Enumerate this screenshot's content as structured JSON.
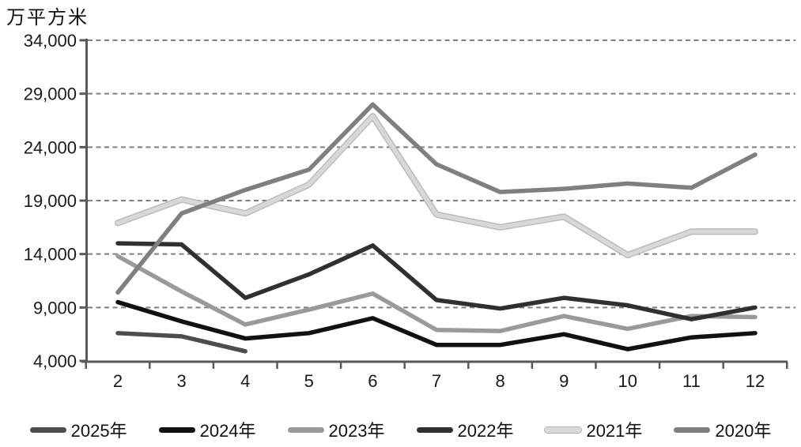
{
  "chart_data": {
    "type": "line",
    "title": "万平方米",
    "xlabel": "",
    "ylabel": "万平方米",
    "x": [
      2,
      3,
      4,
      5,
      6,
      7,
      8,
      9,
      10,
      11,
      12
    ],
    "ylim": [
      4000,
      34000
    ],
    "ytick_interval": 5000,
    "ytick_labels_top_down": [
      "34,000",
      "29,000",
      "24,000",
      "19,000",
      "14,000",
      "9,000",
      "4,000"
    ],
    "grid": "horizontal-dashed",
    "legend_position": "bottom",
    "axis_color": "#595959",
    "grid_color": "#7f7f7f",
    "text_color": "#1a1a1a",
    "series": [
      {
        "name": "2025年",
        "color": "#4d4d4d",
        "values": [
          6600,
          6300,
          4900,
          null,
          null,
          null,
          null,
          null,
          null,
          null,
          null
        ]
      },
      {
        "name": "2024年",
        "color": "#111111",
        "values": [
          9500,
          7700,
          6100,
          6600,
          8000,
          5500,
          5500,
          6500,
          5100,
          6200,
          6600
        ]
      },
      {
        "name": "2023年",
        "color": "#9a9a9a",
        "values": [
          13800,
          10500,
          7400,
          8800,
          10300,
          6900,
          6800,
          8200,
          7000,
          8200,
          8100
        ]
      },
      {
        "name": "2022年",
        "color": "#303030",
        "values": [
          15000,
          14900,
          9900,
          12100,
          14800,
          9700,
          8900,
          9900,
          9200,
          7900,
          9000
        ]
      },
      {
        "name": "2021年",
        "color": "#d8d8d8",
        "edge_color": "#b5b5b5",
        "values": [
          16900,
          19100,
          17800,
          20500,
          26900,
          17700,
          16500,
          17500,
          13900,
          16100,
          16100
        ]
      },
      {
        "name": "2020年",
        "color": "#7f7f7f",
        "values": [
          10400,
          17800,
          20000,
          21900,
          28000,
          22400,
          19800,
          20100,
          20600,
          20200,
          23300
        ]
      }
    ]
  }
}
